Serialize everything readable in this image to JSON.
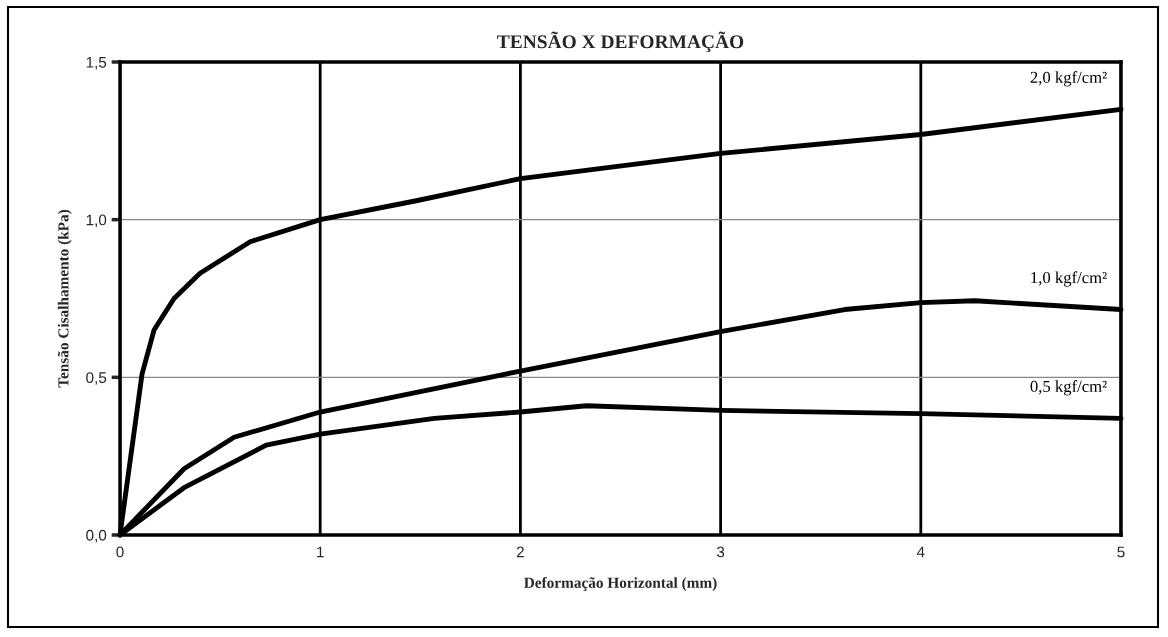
{
  "chart_data": {
    "type": "line",
    "title": "TENSÃO X DEFORMAÇÃO",
    "xlabel": "Deformação Horizontal (mm)",
    "ylabel": "Tensão Cisalhamento (kPa)",
    "xlim": [
      0,
      5
    ],
    "xticks": [
      0,
      1,
      2,
      3,
      4,
      5
    ],
    "ylim": [
      0,
      1.5
    ],
    "yticks": [
      {
        "value": 0,
        "label": "0,0"
      },
      {
        "value": 0.5,
        "label": "0,5"
      },
      {
        "value": 1.0,
        "label": "1,0"
      },
      {
        "value": 1.5,
        "label": "1,5"
      }
    ],
    "grid": true,
    "legend": false,
    "marker": "none",
    "line_style": "solid",
    "series": [
      {
        "name": "2,0 kgf/cm²",
        "color": "#000000",
        "x": [
          0,
          0.11,
          0.17,
          0.27,
          0.4,
          0.65,
          1.0,
          1.48,
          2.0,
          3.0,
          4.0,
          5.0
        ],
        "values": [
          0,
          0.51,
          0.65,
          0.75,
          0.83,
          0.93,
          1.0,
          1.06,
          1.13,
          1.21,
          1.27,
          1.35
        ]
      },
      {
        "name": "1,0 kgf/cm²",
        "color": "#000000",
        "x": [
          0,
          0.32,
          0.57,
          1.0,
          2.0,
          3.0,
          3.62,
          4.0,
          4.27,
          5.0
        ],
        "values": [
          0,
          0.21,
          0.31,
          0.39,
          0.52,
          0.645,
          0.715,
          0.737,
          0.743,
          0.715
        ]
      },
      {
        "name": "0,5 kgf/cm²",
        "color": "#000000",
        "x": [
          0,
          0.32,
          0.73,
          1.0,
          1.57,
          2.0,
          2.33,
          3.0,
          4.0,
          5.0
        ],
        "values": [
          0,
          0.15,
          0.285,
          0.32,
          0.37,
          0.39,
          0.41,
          0.395,
          0.385,
          0.37
        ]
      }
    ]
  }
}
